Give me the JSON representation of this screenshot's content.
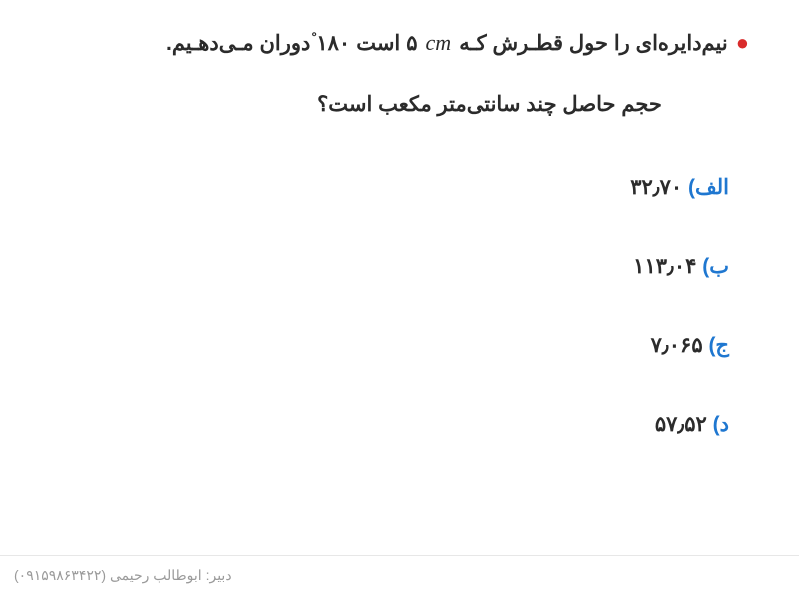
{
  "colors": {
    "bullet": "#d92b2b",
    "text": "#2b2b2b",
    "option_label": "#1f77d0",
    "footer": "#9a9a9a",
    "background": "#ffffff",
    "divider": "#e7e7e7"
  },
  "typography": {
    "question_fontsize": 21,
    "question_weight": "bold",
    "math_family": "Georgia serif italic",
    "footer_fontsize": 14
  },
  "question": {
    "bullet": "●",
    "line1_part1": "نیم‌دایره‌ای را حول قطـرش کـه",
    "cm_unit": "cm",
    "diameter_value": "۵",
    "line1_part2": "است",
    "degree_value": "۱۸۰",
    "degree_mark": "∘",
    "line1_part3": "دوران مـی‌دهـیم.",
    "line2": "حجم حاصل چند سانتی‌متر مکعب است؟"
  },
  "options": [
    {
      "label": "الف)",
      "value": "۳۲٫۷۰"
    },
    {
      "label": "ب)",
      "value": "۱۱۳٫۰۴"
    },
    {
      "label": "ج)",
      "value": "۷٫۰۶۵"
    },
    {
      "label": "د)",
      "value": "۵۷٫۵۲"
    }
  ],
  "footer": {
    "teacher_prefix": "دبیر:",
    "teacher_name": "ابوطالب رحیمی",
    "phone_open": "(",
    "phone": "۰۹۱۵۹۸۶۳۴۲۲",
    "phone_close": ")"
  }
}
